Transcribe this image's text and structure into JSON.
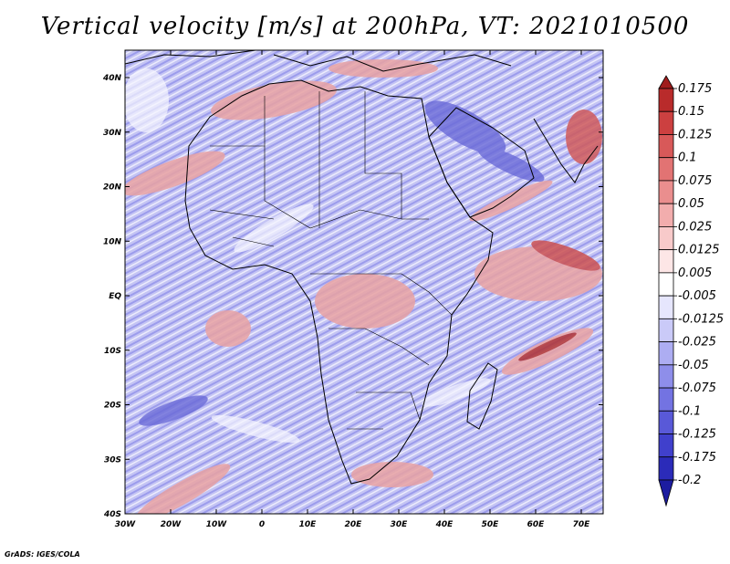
{
  "title": "Vertical velocity [m/s] at 200hPa, VT: 2021010500",
  "credit": "GrADS: IGES/COLA",
  "map": {
    "lon_labels": [
      "30W",
      "20W",
      "10W",
      "0",
      "10E",
      "20E",
      "30E",
      "40E",
      "50E",
      "60E",
      "70E"
    ],
    "lat_labels": [
      "40N",
      "30N",
      "20N",
      "10N",
      "EQ",
      "10S",
      "20S",
      "30S",
      "40S"
    ],
    "field_description_colors": {
      "updraft": "#e8a0a0",
      "downdraft": "#a8a8f0",
      "neutral": "#f4f4ff"
    }
  },
  "colorbar": {
    "labels": [
      "0.175",
      "0.15",
      "0.125",
      "0.1",
      "0.075",
      "0.05",
      "0.025",
      "0.0125",
      "0.005",
      "-0.005",
      "-0.0125",
      "-0.025",
      "-0.05",
      "-0.075",
      "-0.1",
      "-0.125",
      "-0.175",
      "-0.2"
    ],
    "colors": [
      "#a01c1c",
      "#b92b2b",
      "#cc4040",
      "#d85959",
      "#e27373",
      "#ea8e8e",
      "#f2adad",
      "#f8caca",
      "#fde6e6",
      "#ffffff",
      "#e6e6fd",
      "#cacaf8",
      "#adadf2",
      "#8e8eea",
      "#7373e2",
      "#5959d8",
      "#4040cc",
      "#2b2bb9",
      "#1c1ca0"
    ]
  }
}
